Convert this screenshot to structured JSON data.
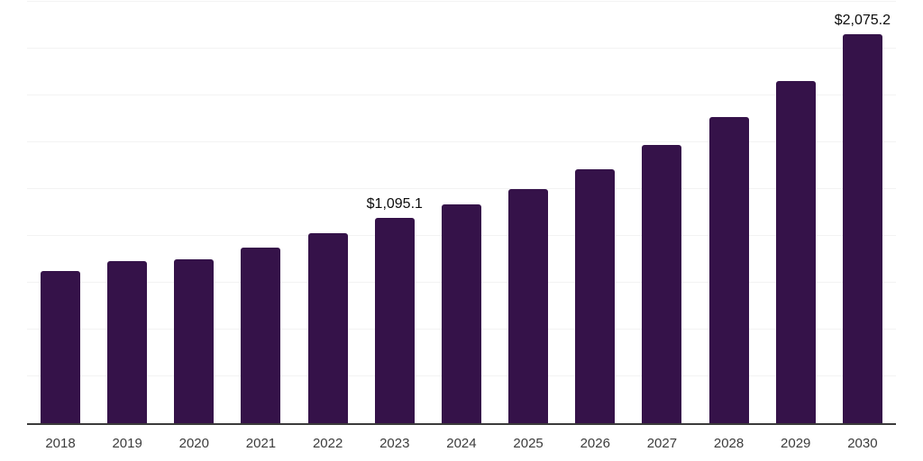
{
  "chart_data": {
    "type": "bar",
    "categories": [
      "2018",
      "2019",
      "2020",
      "2021",
      "2022",
      "2023",
      "2024",
      "2025",
      "2026",
      "2027",
      "2028",
      "2029",
      "2030"
    ],
    "values": [
      812,
      867,
      874,
      938,
      1016,
      1095.1,
      1168,
      1252,
      1358,
      1486,
      1635,
      1825,
      2075.2
    ],
    "value_labels": [
      {
        "category": "2023",
        "text": "$1,095.1"
      },
      {
        "category": "2030",
        "text": "$2,075.2"
      }
    ],
    "title": "",
    "xlabel": "",
    "ylabel": "",
    "ylim": [
      0,
      2255
    ],
    "gridline_interval": 250,
    "grid": true,
    "legend": false,
    "y_axis_tick_labels_visible": false,
    "colors": {
      "bar": "#351249",
      "axis_line": "#3b3b3b",
      "gridline": "#f3f3f3",
      "tick_label": "#3c3c3c",
      "value_label": "#0d0d0d",
      "background": "#ffffff"
    }
  }
}
